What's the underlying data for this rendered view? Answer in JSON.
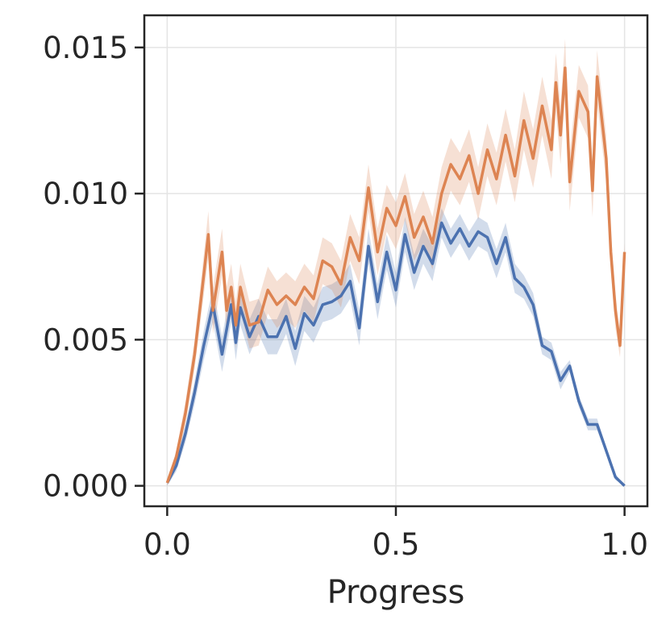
{
  "chart_data": {
    "type": "line",
    "title": "",
    "xlabel": "Progress",
    "ylabel": "",
    "xlim": [
      -0.05,
      1.05
    ],
    "ylim": [
      -0.0007,
      0.0161
    ],
    "xticks": [
      0.0,
      0.5,
      1.0
    ],
    "xtick_labels": [
      "0.0",
      "0.5",
      "1.0"
    ],
    "yticks": [
      0.0,
      0.005,
      0.01,
      0.015
    ],
    "ytick_labels": [
      "0.000",
      "0.005",
      "0.010",
      "0.015"
    ],
    "grid": true,
    "legend": "none",
    "series": [
      {
        "color": "#4c72b0",
        "band_color": "#4c72b0",
        "x": [
          0.0,
          0.02,
          0.04,
          0.06,
          0.08,
          0.1,
          0.12,
          0.14,
          0.15,
          0.16,
          0.18,
          0.2,
          0.22,
          0.24,
          0.26,
          0.28,
          0.3,
          0.32,
          0.34,
          0.36,
          0.38,
          0.4,
          0.42,
          0.44,
          0.46,
          0.48,
          0.5,
          0.52,
          0.54,
          0.56,
          0.58,
          0.6,
          0.62,
          0.64,
          0.66,
          0.68,
          0.7,
          0.72,
          0.74,
          0.76,
          0.78,
          0.8,
          0.82,
          0.84,
          0.86,
          0.88,
          0.9,
          0.92,
          0.94,
          0.96,
          0.98,
          1.0
        ],
        "y": [
          0.0001,
          0.0007,
          0.0018,
          0.0032,
          0.0048,
          0.0062,
          0.0045,
          0.0062,
          0.0049,
          0.0061,
          0.0051,
          0.0058,
          0.0051,
          0.0051,
          0.0058,
          0.0047,
          0.0059,
          0.0055,
          0.0062,
          0.0063,
          0.0065,
          0.007,
          0.0054,
          0.0082,
          0.0063,
          0.008,
          0.0067,
          0.0086,
          0.0073,
          0.0082,
          0.0076,
          0.009,
          0.0083,
          0.0088,
          0.0082,
          0.0087,
          0.0085,
          0.0076,
          0.0085,
          0.0071,
          0.0068,
          0.0062,
          0.0048,
          0.0046,
          0.0036,
          0.0041,
          0.0029,
          0.0021,
          0.0021,
          0.0012,
          0.0003,
          0.0
        ],
        "band": [
          0.0001,
          0.0002,
          0.0003,
          0.0004,
          0.0005,
          0.0006,
          0.0006,
          0.0006,
          0.0006,
          0.0006,
          0.0006,
          0.0006,
          0.0006,
          0.0006,
          0.0006,
          0.0006,
          0.0006,
          0.0006,
          0.0006,
          0.0006,
          0.0006,
          0.0006,
          0.0006,
          0.0006,
          0.0006,
          0.0006,
          0.0006,
          0.0006,
          0.0006,
          0.0006,
          0.0006,
          0.0005,
          0.0005,
          0.0005,
          0.0005,
          0.0005,
          0.0005,
          0.0005,
          0.0005,
          0.0005,
          0.0004,
          0.0004,
          0.0003,
          0.0003,
          0.0003,
          0.0002,
          0.0002,
          0.0002,
          0.0002,
          0.0001,
          0.0001,
          0.0
        ]
      },
      {
        "color": "#dd8452",
        "band_color": "#dd8452",
        "x": [
          0.0,
          0.02,
          0.04,
          0.06,
          0.08,
          0.09,
          0.1,
          0.12,
          0.13,
          0.14,
          0.15,
          0.16,
          0.18,
          0.2,
          0.22,
          0.24,
          0.26,
          0.28,
          0.3,
          0.32,
          0.34,
          0.36,
          0.38,
          0.4,
          0.42,
          0.44,
          0.46,
          0.48,
          0.5,
          0.52,
          0.54,
          0.56,
          0.58,
          0.6,
          0.62,
          0.64,
          0.66,
          0.68,
          0.7,
          0.72,
          0.74,
          0.76,
          0.78,
          0.8,
          0.82,
          0.84,
          0.85,
          0.86,
          0.87,
          0.88,
          0.9,
          0.92,
          0.93,
          0.94,
          0.96,
          0.97,
          0.98,
          0.99,
          1.0
        ],
        "y": [
          0.0001,
          0.001,
          0.0025,
          0.0045,
          0.0072,
          0.0086,
          0.006,
          0.008,
          0.006,
          0.0068,
          0.0055,
          0.0068,
          0.0055,
          0.0056,
          0.0067,
          0.0062,
          0.0065,
          0.0062,
          0.0068,
          0.0064,
          0.0077,
          0.0075,
          0.0069,
          0.0085,
          0.0077,
          0.0102,
          0.008,
          0.0095,
          0.0089,
          0.0099,
          0.0085,
          0.0092,
          0.0083,
          0.01,
          0.011,
          0.0105,
          0.0113,
          0.01,
          0.0115,
          0.0105,
          0.012,
          0.0106,
          0.0125,
          0.0112,
          0.013,
          0.0115,
          0.0138,
          0.012,
          0.0143,
          0.0104,
          0.0135,
          0.0128,
          0.0101,
          0.014,
          0.0112,
          0.008,
          0.006,
          0.0048,
          0.008
        ],
        "band": [
          0.0001,
          0.0002,
          0.0004,
          0.0005,
          0.0007,
          0.0008,
          0.0008,
          0.0008,
          0.0008,
          0.0008,
          0.0008,
          0.0008,
          0.0008,
          0.0008,
          0.0008,
          0.0008,
          0.0008,
          0.0008,
          0.0008,
          0.0008,
          0.0008,
          0.0008,
          0.0008,
          0.0008,
          0.0008,
          0.0008,
          0.0008,
          0.0008,
          0.0008,
          0.0008,
          0.0008,
          0.0009,
          0.0009,
          0.0009,
          0.0009,
          0.0009,
          0.0009,
          0.0009,
          0.0009,
          0.0009,
          0.0009,
          0.0009,
          0.001,
          0.001,
          0.001,
          0.001,
          0.001,
          0.001,
          0.001,
          0.001,
          0.0009,
          0.0009,
          0.0009,
          0.0009,
          0.0008,
          0.0007,
          0.0006,
          0.0004,
          0.0003
        ]
      }
    ]
  }
}
